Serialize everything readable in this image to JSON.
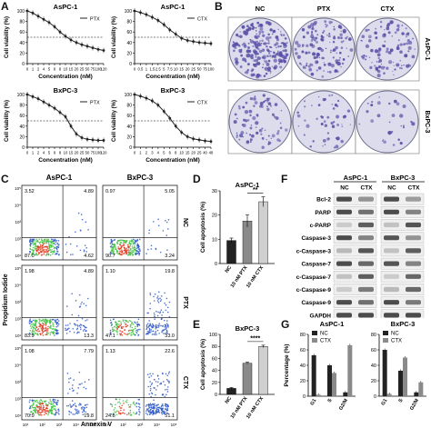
{
  "panel_labels": {
    "A": "A",
    "B": "B",
    "C": "C",
    "D": "D",
    "E": "E",
    "F": "F",
    "G": "G"
  },
  "colors": {
    "line": "#222222",
    "bar_dark": "#222222",
    "bar_grey": "#8a8a8a",
    "bar_light": "#cfcfcf",
    "stain": "#5a4fa8",
    "dish_bg": "#dcdcec",
    "flow_lo": "#2e58c7",
    "flow_mid": "#3fbf3f",
    "flow_hi": "#e13b22",
    "blot_bg": "#efefef",
    "band": "#3a3a3a"
  },
  "chart_data": [
    {
      "id": "A1",
      "type": "line",
      "title": "AsPC-1",
      "series": [
        {
          "name": "PTX",
          "x": [
            0,
            1,
            2,
            4,
            5,
            6,
            8,
            10,
            15,
            20,
            25,
            50,
            75,
            100,
            120
          ],
          "values": [
            100,
            96,
            90,
            84,
            78,
            70,
            60,
            52,
            45,
            40,
            36,
            33,
            30,
            27,
            25
          ]
        }
      ],
      "xlabel": "Concentration (nM)",
      "ylabel": "Cell viability (%)",
      "ylim": [
        0,
        100
      ],
      "xtick_labels": [
        "0",
        "1",
        "2",
        "4",
        "5",
        "6",
        "8",
        "10",
        "15",
        "20",
        "25",
        "50",
        "75",
        "100",
        "120"
      ],
      "ytick_labels": [
        "0",
        "20",
        "40",
        "60",
        "80",
        "100"
      ],
      "reference_line": 50
    },
    {
      "id": "A2",
      "type": "line",
      "title": "AsPC-1",
      "series": [
        {
          "name": "CTX",
          "x": [
            0,
            0.5,
            1,
            1.5,
            2.5,
            5,
            7.5,
            10,
            15,
            20,
            25,
            50,
            75,
            100
          ],
          "values": [
            100,
            97,
            93,
            88,
            82,
            74,
            64,
            56,
            48,
            44,
            42,
            40,
            39,
            38
          ]
        }
      ],
      "xlabel": "Concentration (nM)",
      "ylabel": "Cell viability (%)",
      "ylim": [
        0,
        100
      ],
      "xtick_labels": [
        "0",
        "0.5",
        "1",
        "1.5",
        "2.5",
        "5",
        "7.5",
        "10",
        "15",
        "20",
        "25",
        "50",
        "75",
        "100"
      ],
      "ytick_labels": [
        "0",
        "20",
        "40",
        "60",
        "80",
        "100"
      ],
      "reference_line": 50
    },
    {
      "id": "A3",
      "type": "line",
      "title": "BxPC-3",
      "series": [
        {
          "name": "PTX",
          "x": [
            0,
            1,
            2,
            4,
            5,
            6,
            8,
            10,
            15,
            20,
            25,
            50,
            75,
            100,
            120
          ],
          "values": [
            100,
            96,
            92,
            86,
            80,
            74,
            66,
            58,
            40,
            25,
            18,
            15,
            14,
            13,
            13
          ]
        }
      ],
      "xlabel": "Concentration (nM)",
      "ylabel": "Cell viability (%)",
      "ylim": [
        0,
        100
      ],
      "xtick_labels": [
        "0",
        "1",
        "2",
        "4",
        "5",
        "6",
        "8",
        "10",
        "15",
        "20",
        "25",
        "50",
        "75",
        "100",
        "120"
      ],
      "ytick_labels": [
        "0",
        "20",
        "40",
        "60",
        "80",
        "100"
      ],
      "reference_line": 50
    },
    {
      "id": "A4",
      "type": "line",
      "title": "BxPC-3",
      "series": [
        {
          "name": "CTX",
          "x": [
            0,
            1,
            2,
            3,
            4,
            5,
            6,
            8,
            10,
            15,
            20,
            25,
            40,
            48
          ],
          "values": [
            100,
            97,
            93,
            88,
            80,
            68,
            55,
            40,
            28,
            20,
            16,
            14,
            12,
            11
          ]
        }
      ],
      "xlabel": "Concentration (nM)",
      "ylabel": "Cell viability (%)",
      "ylim": [
        0,
        100
      ],
      "xtick_labels": [
        "0",
        "1",
        "2",
        "3",
        "4",
        "5",
        "6",
        "8",
        "10",
        "15",
        "20",
        "25",
        "40",
        "48"
      ],
      "ytick_labels": [
        "0",
        "20",
        "40",
        "60",
        "80",
        "100"
      ],
      "reference_line": 50
    },
    {
      "id": "D",
      "type": "bar",
      "title": "AsPC-1",
      "categories": [
        "NC",
        "10 nM PTX",
        "10 nM CTX"
      ],
      "values": [
        9.5,
        17.5,
        25.5
      ],
      "errors": [
        1,
        2.5,
        2
      ],
      "ylabel": "Cell apoptosis (%)",
      "ylim": [
        0,
        30
      ],
      "ytick_labels": [
        "0",
        "10",
        "20",
        "30"
      ],
      "significance": "**"
    },
    {
      "id": "E",
      "type": "bar",
      "title": "BxPC-3",
      "categories": [
        "NC",
        "10 nM PTX",
        "10 nM CTX"
      ],
      "values": [
        10,
        52,
        80
      ],
      "errors": [
        1.5,
        1.5,
        2
      ],
      "ylabel": "Cell apoptosis (%)",
      "ylim": [
        0,
        100
      ],
      "ytick_labels": [
        "0",
        "20",
        "40",
        "60",
        "80",
        "100"
      ],
      "significance": "****"
    },
    {
      "id": "G1",
      "type": "bar",
      "title": "AsPC-1",
      "categories": [
        "G1",
        "S",
        "G2/M"
      ],
      "series": [
        {
          "name": "NC",
          "values": [
            53,
            40,
            5
          ]
        },
        {
          "name": "CTX",
          "values": [
            2,
            30,
            66
          ]
        }
      ],
      "ylabel": "Percentage (%)",
      "ylim": [
        0,
        80
      ],
      "ytick_labels": [
        "0",
        "20",
        "40",
        "60",
        "80"
      ]
    },
    {
      "id": "G2",
      "type": "bar",
      "title": "BxPC-3",
      "categories": [
        "G1",
        "S",
        "G2/M"
      ],
      "series": [
        {
          "name": "NC",
          "values": [
            60,
            33,
            5
          ]
        },
        {
          "name": "CTX",
          "values": [
            3,
            50,
            18
          ]
        }
      ],
      "ylabel": "Percentage (%)",
      "ylim": [
        0,
        80
      ],
      "ytick_labels": [
        "0",
        "20",
        "40",
        "60",
        "80"
      ]
    }
  ],
  "panel_b": {
    "columns": [
      "NC",
      "PTX",
      "CTX"
    ],
    "rows": [
      "AsPC-1",
      "BxPC-3"
    ],
    "density": [
      [
        0.95,
        0.55,
        0.45
      ],
      [
        0.35,
        0.22,
        0.12
      ]
    ]
  },
  "panel_c": {
    "columns": [
      "AsPC-1",
      "BxPC-3"
    ],
    "rows": [
      "NC",
      "PTX",
      "CTX"
    ],
    "xlabel": "Annexin V",
    "ylabel": "Propidium Iodide",
    "tick_labels": [
      "10¹",
      "10²",
      "10³",
      "10⁴",
      "10⁵"
    ],
    "quadrants": [
      [
        [
          "3.52",
          "4.89",
          "87.0",
          "4.62"
        ],
        [
          "0.97",
          "5.05",
          "90.7",
          "3.24"
        ]
      ],
      [
        [
          "1.98",
          "4.89",
          "83.9",
          "13.3"
        ],
        [
          "1.10",
          "19.8",
          "47.1",
          "33.0"
        ]
      ],
      [
        [
          "1.08",
          "7.79",
          "70.9",
          "19.8"
        ],
        [
          "1.13",
          "22.6",
          "24.8",
          "51.1"
        ]
      ]
    ]
  },
  "panel_f": {
    "cell_lines": [
      "AsPC-1",
      "BxPC-3"
    ],
    "lanes": [
      "NC",
      "CTX",
      "NC",
      "CTX"
    ],
    "proteins": [
      "Bcl-2",
      "PARP",
      "c-PARP",
      "Caspase-3",
      "c-Caspase-3",
      "Caspase-7",
      "c-Caspase-7",
      "c-Caspase-9",
      "Caspase-9",
      "GAPDH"
    ],
    "band_intensity": [
      [
        0.9,
        0.5,
        0.9,
        0.45
      ],
      [
        0.9,
        0.7,
        0.9,
        0.6
      ],
      [
        0.2,
        0.8,
        0.25,
        0.85
      ],
      [
        0.9,
        0.6,
        0.85,
        0.5
      ],
      [
        0.3,
        0.85,
        0.25,
        0.8
      ],
      [
        0.9,
        0.75,
        0.85,
        0.6
      ],
      [
        0.25,
        0.8,
        0.2,
        0.75
      ],
      [
        0.2,
        0.65,
        0.3,
        0.75
      ],
      [
        0.9,
        0.7,
        0.9,
        0.65
      ],
      [
        0.9,
        0.9,
        0.9,
        0.9
      ]
    ]
  }
}
